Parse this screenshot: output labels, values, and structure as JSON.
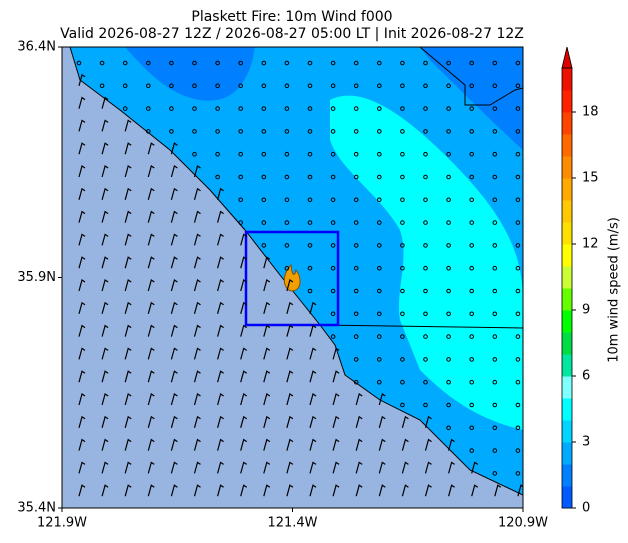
{
  "map": {
    "title": "Plaskett Fire: 10m Wind f000",
    "subtitle": "Valid 2026-08-27 12Z / 2026-08-27 05:00 LT | Init 2026-08-27 12Z",
    "xlim": [
      -121.9,
      -120.9
    ],
    "xticks": [
      {
        "value": -121.9,
        "label": "121.9W"
      },
      {
        "value": -121.4,
        "label": "121.4W"
      },
      {
        "value": -120.9,
        "label": "120.9W"
      }
    ],
    "ylim": [
      35.4,
      36.4
    ],
    "yticks": [
      {
        "value": 35.4,
        "label": "35.4N"
      },
      {
        "value": 35.9,
        "label": "35.9N"
      },
      {
        "value": 36.4,
        "label": "36.4N"
      }
    ],
    "colorbar": {
      "label": "10m wind speed (m/s)",
      "lim": [
        0,
        20
      ],
      "ticks": [
        0,
        3,
        6,
        9,
        12,
        15,
        18
      ],
      "colors": [
        "#005aff",
        "#0080ff",
        "#00aaff",
        "#00d4ff",
        "#00ffff",
        "#80ffff",
        "#00e5a0",
        "#00dd44",
        "#00ff00",
        "#66ff00",
        "#ccff33",
        "#ffff00",
        "#ffe000",
        "#ffc800",
        "#ffaa00",
        "#ff8c00",
        "#ff6a00",
        "#ff4400",
        "#ff2200",
        "#ee1100"
      ],
      "over_color": "#dd0000"
    }
  }
}
